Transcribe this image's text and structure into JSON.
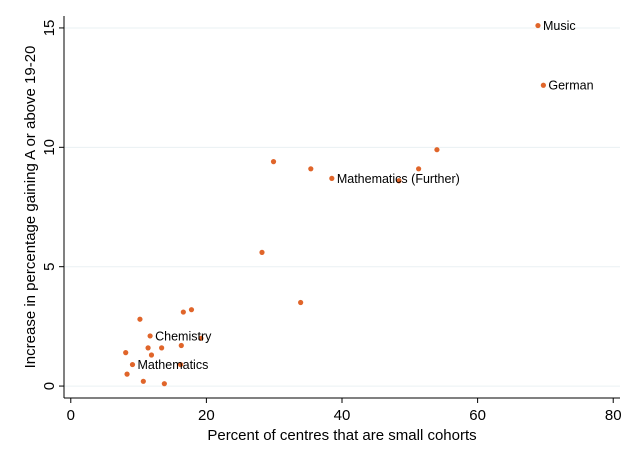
{
  "chart_data": {
    "type": "scatter",
    "title": "",
    "xlabel": "Percent of centres that are small cohorts",
    "ylabel": "Increase in percentage gaining A or above 19-20",
    "xlim": [
      -1,
      81
    ],
    "ylim": [
      -0.5,
      15.5
    ],
    "xticks": [
      0,
      20,
      40,
      60,
      80
    ],
    "yticks": [
      0,
      5,
      10,
      15
    ],
    "grid": true,
    "legend": "none",
    "marker_color": "#e0652a",
    "grid_color": "#eaf0f3",
    "points": [
      {
        "x": 68.9,
        "y": 15.1,
        "label": "Music"
      },
      {
        "x": 69.7,
        "y": 12.6,
        "label": "German"
      },
      {
        "x": 54.0,
        "y": 9.9,
        "label": ""
      },
      {
        "x": 51.3,
        "y": 9.1,
        "label": ""
      },
      {
        "x": 48.4,
        "y": 8.6,
        "label": ""
      },
      {
        "x": 38.5,
        "y": 8.7,
        "label": "Mathematics (Further)"
      },
      {
        "x": 35.4,
        "y": 9.1,
        "label": ""
      },
      {
        "x": 29.9,
        "y": 9.4,
        "label": ""
      },
      {
        "x": 28.2,
        "y": 5.6,
        "label": ""
      },
      {
        "x": 33.9,
        "y": 3.5,
        "label": ""
      },
      {
        "x": 17.8,
        "y": 3.2,
        "label": ""
      },
      {
        "x": 16.6,
        "y": 3.1,
        "label": ""
      },
      {
        "x": 10.2,
        "y": 2.8,
        "label": ""
      },
      {
        "x": 11.7,
        "y": 2.1,
        "label": "Chemistry"
      },
      {
        "x": 19.2,
        "y": 2.0,
        "label": ""
      },
      {
        "x": 16.3,
        "y": 1.7,
        "label": ""
      },
      {
        "x": 11.4,
        "y": 1.6,
        "label": ""
      },
      {
        "x": 13.4,
        "y": 1.6,
        "label": ""
      },
      {
        "x": 8.1,
        "y": 1.4,
        "label": ""
      },
      {
        "x": 11.9,
        "y": 1.3,
        "label": ""
      },
      {
        "x": 9.1,
        "y": 0.9,
        "label": "Mathematics"
      },
      {
        "x": 16.2,
        "y": 0.9,
        "label": ""
      },
      {
        "x": 8.3,
        "y": 0.5,
        "label": ""
      },
      {
        "x": 10.7,
        "y": 0.2,
        "label": ""
      },
      {
        "x": 13.8,
        "y": 0.1,
        "label": ""
      }
    ]
  }
}
